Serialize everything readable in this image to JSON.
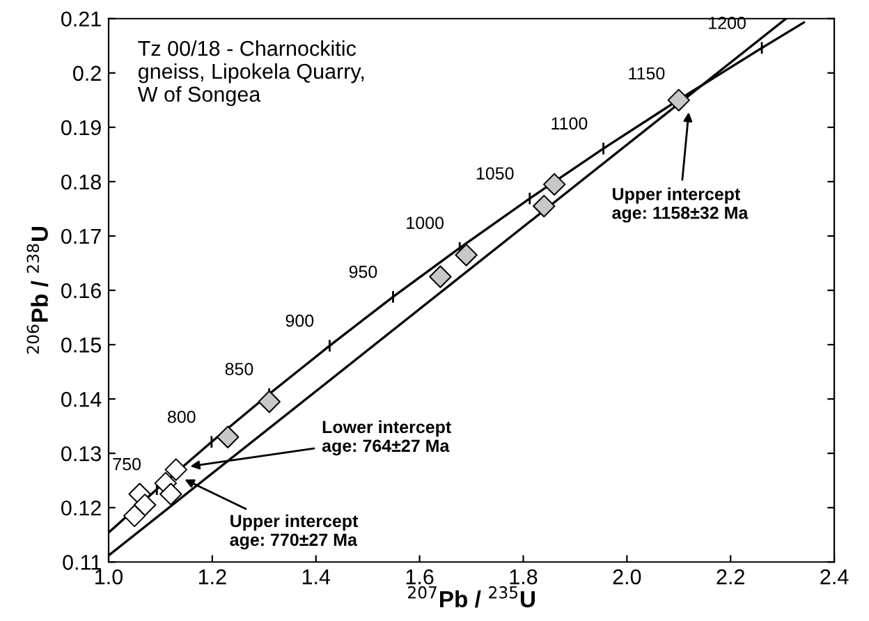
{
  "chart_data": {
    "type": "line",
    "xlabel": "$^{207}$Pb / $^{235}$U",
    "ylabel": "$^{206}$Pb / $^{238}$U",
    "xlim": [
      1.0,
      2.4
    ],
    "ylim": [
      0.11,
      0.21
    ],
    "xticks": [
      {
        "value": 1.0,
        "label": "1.0"
      },
      1.2,
      1.4,
      1.6,
      1.8,
      {
        "value": 2.0,
        "label": "2.0"
      },
      2.2,
      2.4
    ],
    "yticks": [
      0.11,
      0.12,
      0.13,
      0.14,
      0.15,
      0.16,
      0.17,
      0.18,
      0.19,
      0.2,
      0.21
    ],
    "grid": false,
    "legend": false,
    "series": [
      {
        "color": "#000000",
        "x": [
          1.0,
          1.093,
          1.1986,
          1.3097,
          1.4264,
          1.5488,
          1.6774,
          1.8125,
          1.9546,
          2.1037,
          2.2603,
          2.3415
        ],
        "values": [
          0.1154,
          0.1234,
          0.1321,
          0.1409,
          0.1498,
          0.1588,
          0.1678,
          0.1769,
          0.1861,
          0.1953,
          0.2046,
          0.2093
        ]
      },
      {
        "color": "#000000",
        "x": [
          1.0,
          2.307
        ],
        "values": [
          0.1112,
          0.21
        ]
      },
      {
        "type": "scatter",
        "color": "#c8c8c8",
        "marker": "diamond",
        "x": [
          2.1,
          1.86,
          1.84,
          1.69,
          1.64,
          1.31,
          1.23
        ],
        "values": [
          0.195,
          0.1795,
          0.1755,
          0.1665,
          0.1625,
          0.1395,
          0.133
        ]
      },
      {
        "type": "scatter",
        "color": "#ffffff",
        "marker": "diamond",
        "x": [
          1.13,
          1.11,
          1.12,
          1.06,
          1.07,
          1.05
        ],
        "values": [
          0.127,
          0.1245,
          0.1225,
          0.1225,
          0.1205,
          0.1185
        ]
      }
    ],
    "annotations": [
      "Tz 00/18 - Charnockitic\ngneiss, Lipokela Quarry,\nW of Songea",
      {
        "text": "Lower intercept\nage: 764±27 Ma",
        "x": 1.15,
        "y": 0.1275
      },
      {
        "text": "Upper intercept\nage: 770±27 Ma",
        "x": 1.14,
        "y": 0.1255
      },
      {
        "text": "Upper intercept\nage: 1158±32 Ma",
        "x": 2.12,
        "y": 0.1935
      },
      {
        "text": "750",
        "x": 1.093,
        "y": 0.1234
      },
      {
        "text": "800",
        "x": 1.1986,
        "y": 0.1321
      },
      {
        "text": "850",
        "x": 1.3097,
        "y": 0.1409
      },
      {
        "text": "900",
        "x": 1.4264,
        "y": 0.1498
      },
      {
        "text": "950",
        "x": 1.5488,
        "y": 0.1588
      },
      {
        "text": "1000",
        "x": 1.6774,
        "y": 0.1678
      },
      {
        "text": "1050",
        "x": 1.8125,
        "y": 0.1769
      },
      {
        "text": "1100",
        "x": 1.9546,
        "y": 0.1861
      },
      {
        "text": "1150",
        "x": 2.1037,
        "y": 0.1953
      },
      {
        "text": "1200",
        "x": 2.2603,
        "y": 0.2046
      }
    ]
  }
}
